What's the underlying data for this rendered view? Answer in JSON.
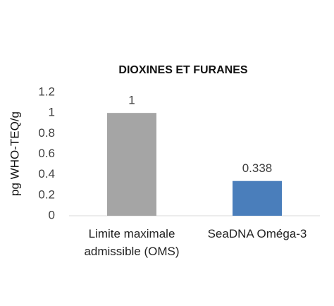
{
  "chart_data": {
    "type": "bar",
    "title": "DIOXINES ET FURANES",
    "y_label": "pg WHO-TEQ/g",
    "categories": [
      "Limite maximale admissible (OMS)",
      "SeaDNA Oméga-3"
    ],
    "values": [
      1,
      0.338
    ],
    "colors": [
      "#a5a5a5",
      "#4a7ebb"
    ],
    "ylim": [
      0,
      1.2
    ],
    "yticks": [
      0,
      0.2,
      0.4,
      0.6,
      0.8,
      1,
      1.2
    ],
    "grid": false
  }
}
